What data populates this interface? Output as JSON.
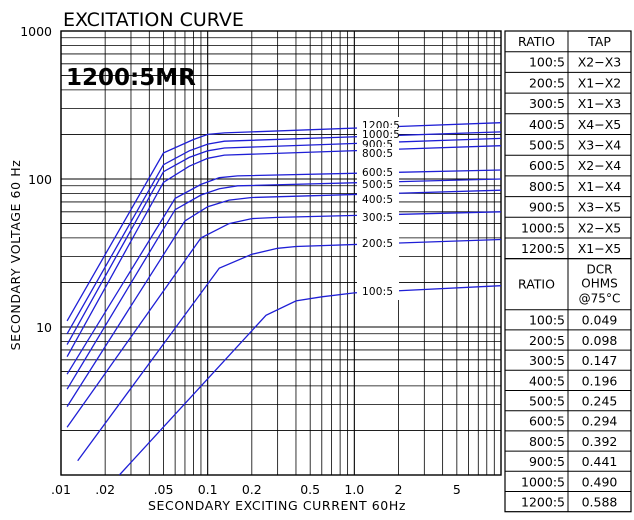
{
  "chart_data": {
    "type": "line",
    "title": "EXCITATION CURVE",
    "subtitle": "1200:5MR",
    "xlabel": "SECONDARY EXCITING CURRENT 60Hz",
    "ylabel": "SECONDARY VOLTAGE 60 Hz",
    "x_scale": "log",
    "y_scale": "log",
    "xlim": [
      0.01,
      10
    ],
    "ylim": [
      1,
      1000
    ],
    "grid": true,
    "x_tick_labels": [
      {
        "value": 0.01,
        "label": ".01"
      },
      {
        "value": 0.02,
        "label": ".02"
      },
      {
        "value": 0.05,
        "label": ".05"
      },
      {
        "value": 0.1,
        "label": "0.1"
      },
      {
        "value": 0.2,
        "label": "0.2"
      },
      {
        "value": 0.5,
        "label": "0.5"
      },
      {
        "value": 1.0,
        "label": "1.0"
      },
      {
        "value": 2,
        "label": "2"
      },
      {
        "value": 5,
        "label": "5"
      }
    ],
    "y_tick_labels": [
      {
        "value": 10,
        "label": "10"
      },
      {
        "value": 100,
        "label": "100"
      },
      {
        "value": 1000,
        "label": "1000"
      }
    ],
    "series": [
      {
        "name": "1200:5",
        "x": [
          0.011,
          0.05,
          0.08,
          0.1,
          0.13,
          10
        ],
        "y": [
          11,
          150,
          185,
          200,
          205,
          240
        ]
      },
      {
        "name": "1000:5",
        "x": [
          0.011,
          0.05,
          0.075,
          0.1,
          0.13,
          10
        ],
        "y": [
          9,
          125,
          155,
          172,
          180,
          208
        ]
      },
      {
        "name": "900:5",
        "x": [
          0.011,
          0.05,
          0.075,
          0.1,
          0.13,
          10
        ],
        "y": [
          7.6,
          112,
          140,
          155,
          162,
          188
        ]
      },
      {
        "name": "800:5",
        "x": [
          0.011,
          0.05,
          0.075,
          0.1,
          0.13,
          10
        ],
        "y": [
          6.3,
          95,
          122,
          138,
          145,
          168
        ]
      },
      {
        "name": "600:5",
        "x": [
          0.011,
          0.06,
          0.09,
          0.12,
          0.16,
          10
        ],
        "y": [
          4.8,
          74,
          92,
          102,
          105,
          115
        ]
      },
      {
        "name": "500:5",
        "x": [
          0.011,
          0.06,
          0.09,
          0.12,
          0.16,
          10
        ],
        "y": [
          3.8,
          62,
          78,
          86,
          90,
          100
        ]
      },
      {
        "name": "400:5",
        "x": [
          0.011,
          0.07,
          0.1,
          0.14,
          0.2,
          10
        ],
        "y": [
          2.9,
          52,
          65,
          72,
          75,
          84
        ]
      },
      {
        "name": "300:5",
        "x": [
          0.011,
          0.09,
          0.14,
          0.2,
          0.3,
          10
        ],
        "y": [
          2.1,
          40,
          50,
          54,
          55,
          60
        ]
      },
      {
        "name": "200:5",
        "x": [
          0.013,
          0.12,
          0.2,
          0.3,
          0.4,
          10
        ],
        "y": [
          1.25,
          25,
          31,
          34,
          35,
          39
        ]
      },
      {
        "name": "100:5",
        "x": [
          0.025,
          0.25,
          0.4,
          0.6,
          1.0,
          10
        ],
        "y": [
          1.0,
          12,
          15,
          16,
          17,
          19
        ]
      }
    ],
    "colors": {
      "curve": "#1f1fd6",
      "grid": "#000000"
    }
  },
  "tap_table": {
    "headers": [
      "RATIO",
      "TAP"
    ],
    "rows": [
      [
        "100:5",
        "X2−X3"
      ],
      [
        "200:5",
        "X1−X2"
      ],
      [
        "300:5",
        "X1−X3"
      ],
      [
        "400:5",
        "X4−X5"
      ],
      [
        "500:5",
        "X3−X4"
      ],
      [
        "600:5",
        "X2−X4"
      ],
      [
        "800:5",
        "X1−X4"
      ],
      [
        "900:5",
        "X3−X5"
      ],
      [
        "1000:5",
        "X2−X5"
      ],
      [
        "1200:5",
        "X1−X5"
      ]
    ]
  },
  "dcr_table": {
    "headers": [
      "RATIO",
      "DCR",
      "OHMS",
      "@75°C"
    ],
    "rows": [
      [
        "100:5",
        "0.049"
      ],
      [
        "200:5",
        "0.098"
      ],
      [
        "300:5",
        "0.147"
      ],
      [
        "400:5",
        "0.196"
      ],
      [
        "500:5",
        "0.245"
      ],
      [
        "600:5",
        "0.294"
      ],
      [
        "800:5",
        "0.392"
      ],
      [
        "900:5",
        "0.441"
      ],
      [
        "1000:5",
        "0.490"
      ],
      [
        "1200:5",
        "0.588"
      ]
    ]
  }
}
